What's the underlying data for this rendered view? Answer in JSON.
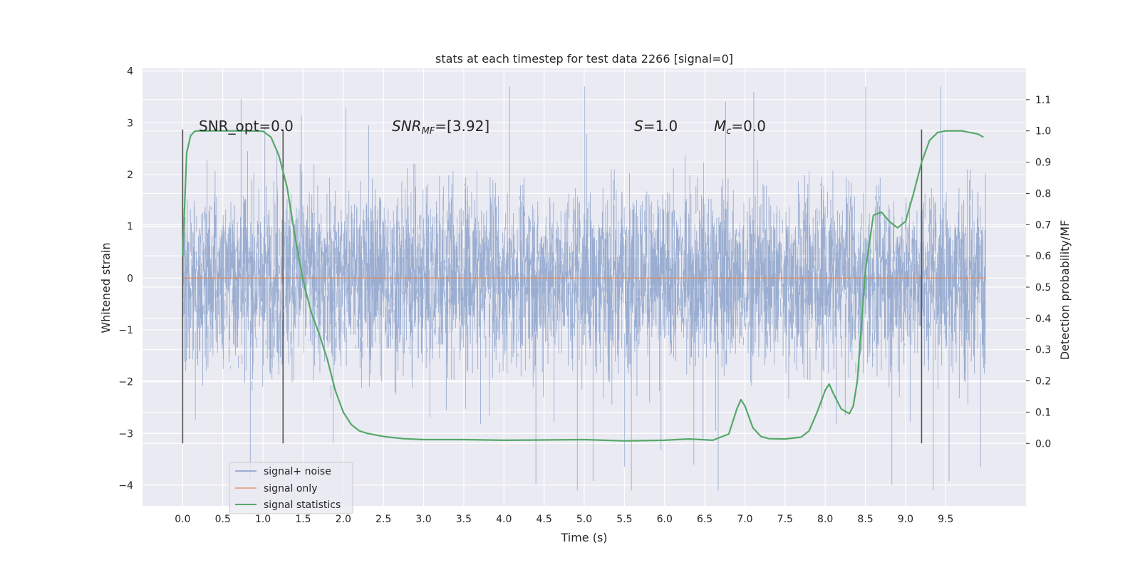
{
  "chart_data": {
    "type": "line",
    "title": "stats at each timestep for test data 2266 [signal=0]",
    "xlabel": "Time (s)",
    "ylabel": "Whitened strain",
    "y2label": "Detection probability/MF",
    "xlim": [
      -0.5,
      10.5
    ],
    "ylim": [
      -4.4,
      4.05
    ],
    "y2lim": [
      -0.2,
      1.2
    ],
    "x_ticks": [
      "0.0",
      "0.5",
      "1.0",
      "1.5",
      "2.0",
      "2.5",
      "3.0",
      "3.5",
      "4.0",
      "4.5",
      "5.0",
      "5.5",
      "6.0",
      "6.5",
      "7.0",
      "7.5",
      "8.0",
      "8.5",
      "9.0",
      "9.5"
    ],
    "y_ticks": [
      "4",
      "3",
      "2",
      "1",
      "0",
      "−1",
      "−2",
      "−3",
      "−4"
    ],
    "y2_ticks": [
      "1.1",
      "1.0",
      "0.9",
      "0.8",
      "0.7",
      "0.6",
      "0.5",
      "0.4",
      "0.3",
      "0.2",
      "0.1",
      "0.0"
    ],
    "grid": true,
    "legend_position": "lower-left",
    "annotations": {
      "snr_opt": "SNR_opt=0.0",
      "snr_mf_main": "SNR",
      "snr_mf_sub": "MF",
      "snr_mf_value": "=[3.92]",
      "s_label": "S",
      "s_value": "=1.0",
      "mc_main": "M",
      "mc_sub": "c",
      "mc_value": "=0.0"
    },
    "vertical_lines": [
      0.0,
      1.25,
      9.2
    ],
    "series": [
      {
        "name": "signal+ noise",
        "color": "#4c72b0",
        "x_range": [
          0.0,
          10.0
        ],
        "envelope_note": "dense noise roughly within ±1 to ±2.5"
      },
      {
        "name": "signal only",
        "color": "#dd8452",
        "x": [
          0.0,
          10.0
        ],
        "y": [
          0.0,
          0.0
        ]
      },
      {
        "name": "signal statistics",
        "color": "#55a868",
        "axis": "right",
        "x": [
          0.0,
          0.05,
          0.1,
          0.15,
          0.2,
          0.3,
          0.5,
          0.75,
          1.0,
          1.1,
          1.2,
          1.3,
          1.4,
          1.5,
          1.6,
          1.7,
          1.8,
          1.9,
          2.0,
          2.1,
          2.2,
          2.3,
          2.5,
          2.75,
          3.0,
          3.5,
          4.0,
          4.5,
          5.0,
          5.5,
          6.0,
          6.3,
          6.6,
          6.8,
          6.9,
          6.95,
          7.0,
          7.1,
          7.2,
          7.3,
          7.5,
          7.7,
          7.8,
          7.9,
          8.0,
          8.05,
          8.1,
          8.2,
          8.3,
          8.35,
          8.4,
          8.5,
          8.6,
          8.7,
          8.8,
          8.9,
          9.0,
          9.1,
          9.2,
          9.3,
          9.4,
          9.5,
          9.7,
          9.9,
          9.97
        ],
        "y": [
          0.6,
          0.93,
          0.985,
          0.999,
          1.0,
          1.0,
          1.0,
          1.0,
          0.999,
          0.98,
          0.92,
          0.82,
          0.66,
          0.52,
          0.42,
          0.35,
          0.27,
          0.17,
          0.1,
          0.06,
          0.04,
          0.032,
          0.022,
          0.015,
          0.012,
          0.012,
          0.01,
          0.011,
          0.012,
          0.008,
          0.01,
          0.014,
          0.01,
          0.03,
          0.11,
          0.14,
          0.12,
          0.05,
          0.022,
          0.015,
          0.014,
          0.02,
          0.04,
          0.1,
          0.17,
          0.19,
          0.16,
          0.11,
          0.095,
          0.12,
          0.2,
          0.55,
          0.73,
          0.74,
          0.71,
          0.69,
          0.71,
          0.8,
          0.9,
          0.97,
          0.995,
          1.0,
          1.0,
          0.99,
          0.98
        ]
      }
    ]
  }
}
